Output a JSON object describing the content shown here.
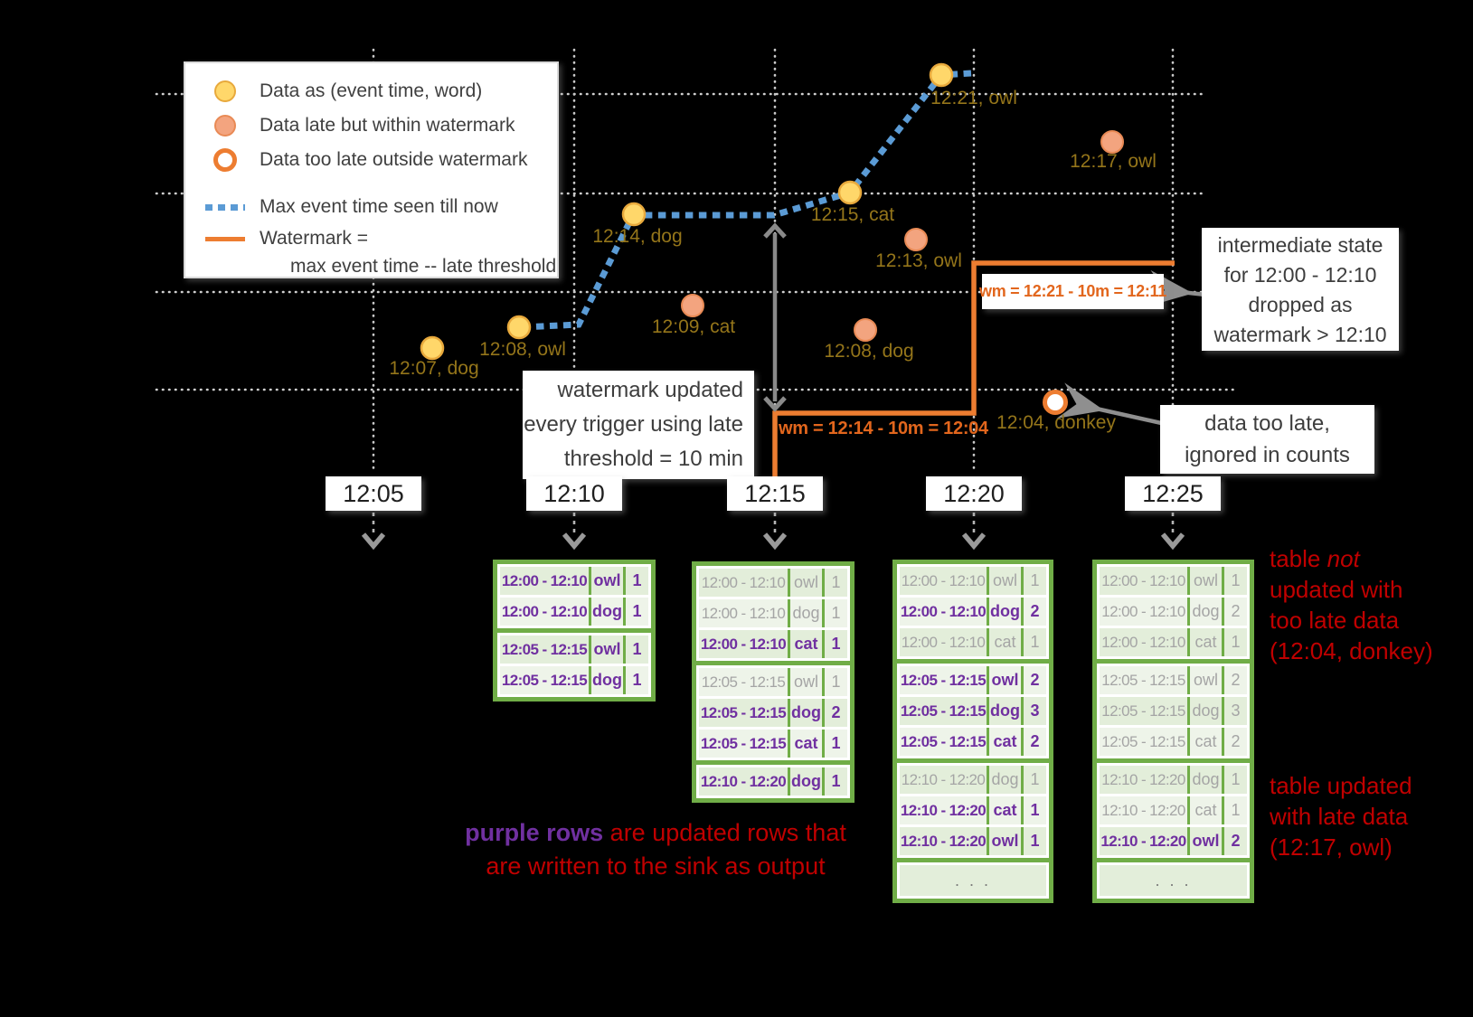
{
  "colors": {
    "background": "#000000",
    "on_time_fill": "#ffd76a",
    "late_fill": "#f3a47f",
    "too_late_ring": "#ed7d31",
    "max_event_line": "#5b9bd5",
    "watermark_line": "#ed7d31",
    "table_green": "#70ad47",
    "updated_purple": "#7030a0",
    "old_gray": "#a5a5a5",
    "red_note": "#c00000",
    "gold_label": "#94751a"
  },
  "legend": {
    "items": [
      {
        "swatch": "yellow-dot-icon",
        "label": "Data as (event time, word)"
      },
      {
        "swatch": "salmon-dot-icon",
        "label": "Data late but within watermark"
      },
      {
        "swatch": "open-dot-icon",
        "label": "Data too late outside watermark"
      },
      {
        "swatch": "blue-dotted-line-icon",
        "label": "Max event time seen till now"
      },
      {
        "swatch": "orange-line-icon",
        "label": "Watermark =",
        "label2": "max event time -- late threshold"
      }
    ]
  },
  "points": [
    {
      "label": "12:07, dog",
      "event_time": "12:07",
      "word": "dog",
      "status": "on-time"
    },
    {
      "label": "12:08, owl",
      "event_time": "12:08",
      "word": "owl",
      "status": "on-time"
    },
    {
      "label": "12:14, dog",
      "event_time": "12:14",
      "word": "dog",
      "status": "on-time"
    },
    {
      "label": "12:15, cat",
      "event_time": "12:15",
      "word": "cat",
      "status": "on-time"
    },
    {
      "label": "12:21, owl",
      "event_time": "12:21",
      "word": "owl",
      "status": "on-time"
    },
    {
      "label": "12:09, cat",
      "event_time": "12:09",
      "word": "cat",
      "status": "late-within-watermark"
    },
    {
      "label": "12:13, owl",
      "event_time": "12:13",
      "word": "owl",
      "status": "late-within-watermark"
    },
    {
      "label": "12:08, dog",
      "event_time": "12:08",
      "word": "dog",
      "status": "late-within-watermark"
    },
    {
      "label": "12:17, owl",
      "event_time": "12:17",
      "word": "owl",
      "status": "late-within-watermark"
    },
    {
      "label": "12:04, donkey",
      "event_time": "12:04",
      "word": "donkey",
      "status": "too-late"
    }
  ],
  "timeline": [
    "12:05",
    "12:10",
    "12:15",
    "12:20",
    "12:25"
  ],
  "watermark": {
    "first": "wm = 12:14 - 10m = 12:04",
    "second": "wm = 12:21 - 10m = 12:11"
  },
  "notes": {
    "trigger": [
      "watermark updated",
      "every trigger using late",
      "threshold = 10 min"
    ],
    "intermediate": [
      "intermediate state",
      "for 12:00 - 12:10",
      "dropped as",
      "watermark > 12:10"
    ],
    "too_late": [
      "data too late,",
      "ignored in counts"
    ],
    "not_updated": {
      "l1a": "table ",
      "l1b": "not",
      "l2": "updated with",
      "l3": "too late data",
      "l4": "(12:04, donkey)"
    },
    "updated": [
      "table updated",
      "with late data",
      "(12:17, owl)"
    ]
  },
  "caption": {
    "highlight": "purple rows",
    "rest": " are updated rows that",
    "line2": "are written to the sink as output"
  },
  "tables": [
    {
      "trigger": "12:10",
      "groups": [
        2,
        2
      ],
      "ellipsis": null,
      "rows": [
        {
          "window": "12:00 - 12:10",
          "word": "owl",
          "count": "1",
          "state": "new"
        },
        {
          "window": "12:00 - 12:10",
          "word": "dog",
          "count": "1",
          "state": "new"
        },
        {
          "window": "12:05 - 12:15",
          "word": "owl",
          "count": "1",
          "state": "new"
        },
        {
          "window": "12:05 - 12:15",
          "word": "dog",
          "count": "1",
          "state": "new"
        }
      ]
    },
    {
      "trigger": "12:15",
      "groups": [
        3,
        3,
        1
      ],
      "ellipsis": null,
      "rows": [
        {
          "window": "12:00 - 12:10",
          "word": "owl",
          "count": "1",
          "state": "old"
        },
        {
          "window": "12:00 - 12:10",
          "word": "dog",
          "count": "1",
          "state": "old"
        },
        {
          "window": "12:00 - 12:10",
          "word": "cat",
          "count": "1",
          "state": "new"
        },
        {
          "window": "12:05 - 12:15",
          "word": "owl",
          "count": "1",
          "state": "old"
        },
        {
          "window": "12:05 - 12:15",
          "word": "dog",
          "count": "2",
          "state": "new"
        },
        {
          "window": "12:05 - 12:15",
          "word": "cat",
          "count": "1",
          "state": "new"
        },
        {
          "window": "12:10 - 12:20",
          "word": "dog",
          "count": "1",
          "state": "new"
        }
      ]
    },
    {
      "trigger": "12:20",
      "groups": [
        3,
        3,
        3
      ],
      "ellipsis": ". . .",
      "rows": [
        {
          "window": "12:00 - 12:10",
          "word": "owl",
          "count": "1",
          "state": "old"
        },
        {
          "window": "12:00 - 12:10",
          "word": "dog",
          "count": "2",
          "state": "new"
        },
        {
          "window": "12:00 - 12:10",
          "word": "cat",
          "count": "1",
          "state": "old"
        },
        {
          "window": "12:05 - 12:15",
          "word": "owl",
          "count": "2",
          "state": "new"
        },
        {
          "window": "12:05 - 12:15",
          "word": "dog",
          "count": "3",
          "state": "new"
        },
        {
          "window": "12:05 - 12:15",
          "word": "cat",
          "count": "2",
          "state": "new"
        },
        {
          "window": "12:10 - 12:20",
          "word": "dog",
          "count": "1",
          "state": "old"
        },
        {
          "window": "12:10 - 12:20",
          "word": "cat",
          "count": "1",
          "state": "new"
        },
        {
          "window": "12:10 - 12:20",
          "word": "owl",
          "count": "1",
          "state": "new"
        }
      ]
    },
    {
      "trigger": "12:25",
      "groups": [
        3,
        3,
        3
      ],
      "ellipsis": ". . .",
      "rows": [
        {
          "window": "12:00 - 12:10",
          "word": "owl",
          "count": "1",
          "state": "old"
        },
        {
          "window": "12:00 - 12:10",
          "word": "dog",
          "count": "2",
          "state": "old"
        },
        {
          "window": "12:00 - 12:10",
          "word": "cat",
          "count": "1",
          "state": "old"
        },
        {
          "window": "12:05 - 12:15",
          "word": "owl",
          "count": "2",
          "state": "old"
        },
        {
          "window": "12:05 - 12:15",
          "word": "dog",
          "count": "3",
          "state": "old"
        },
        {
          "window": "12:05 - 12:15",
          "word": "cat",
          "count": "2",
          "state": "old"
        },
        {
          "window": "12:10 - 12:20",
          "word": "dog",
          "count": "1",
          "state": "old"
        },
        {
          "window": "12:10 - 12:20",
          "word": "cat",
          "count": "1",
          "state": "old"
        },
        {
          "window": "12:10 - 12:20",
          "word": "owl",
          "count": "2",
          "state": "new"
        }
      ]
    }
  ]
}
